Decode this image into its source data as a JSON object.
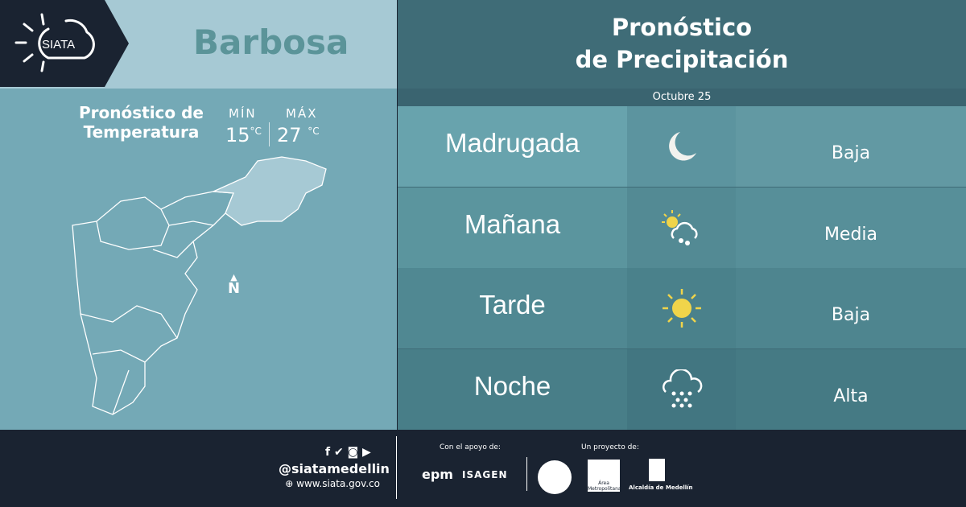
{
  "brand": {
    "logo_text": "SIATA"
  },
  "municipality": "Barbosa",
  "temperature": {
    "title_line1": "Pronóstico de",
    "title_line2": "Temperatura",
    "min_label": "MÍN",
    "max_label": "MÁX",
    "min_value": "15",
    "max_value": "27",
    "unit": "°C"
  },
  "map": {
    "north_label": "N"
  },
  "precipitation": {
    "title_line1": "Pronóstico",
    "title_line2": "de Precipitación",
    "date": "Octubre 25",
    "rows": [
      {
        "period": "Madrugada",
        "icon": "moon-icon",
        "level": "Baja"
      },
      {
        "period": "Mañana",
        "icon": "sun-cloud-rain-icon",
        "level": "Media"
      },
      {
        "period": "Tarde",
        "icon": "sun-icon",
        "level": "Baja"
      },
      {
        "period": "Noche",
        "icon": "cloud-heavy-rain-icon",
        "level": "Alta"
      }
    ]
  },
  "footer": {
    "handle": "@siatamedellin",
    "website": "www.siata.gov.co",
    "support_label": "Con el apoyo de:",
    "project_label": "Un proyecto de:",
    "sponsors": [
      "epm",
      "ISAGEN"
    ],
    "partners": [
      "Área Metropolitana",
      "Alcaldía de Medellín"
    ]
  },
  "colors": {
    "navy": "#1a2331",
    "light": "#a6c9d4",
    "map_bg": "#74a9b6",
    "sun": "#f0d44a"
  }
}
